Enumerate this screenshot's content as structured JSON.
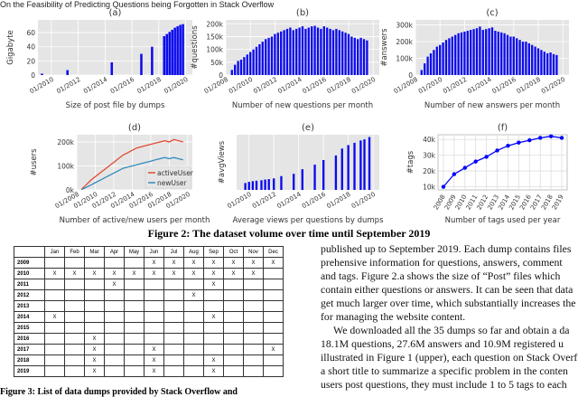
{
  "header": {
    "running_title": "On the Feasibility of Predicting Questions being Forgotten in Stack Overflow"
  },
  "chart_data": [
    {
      "type": "bar",
      "title": "(a)",
      "y_label": "Gigabyte",
      "x_label": "Size of post file by dumps",
      "color": "#0a0aee",
      "background": "#e5e5e5",
      "grid": true,
      "x": [
        2009.3,
        2011.2,
        2014.5,
        2016.7,
        2017.5,
        2018.4,
        2018.6,
        2018.8,
        2019.0,
        2019.2,
        2019.4,
        2019.6,
        2019.8
      ],
      "values": [
        2,
        7,
        18,
        30,
        40,
        55,
        58,
        61,
        64,
        67,
        69,
        71,
        72
      ],
      "xlim": [
        2009,
        2020.5
      ],
      "ylim": [
        0,
        78
      ],
      "xticks": [
        {
          "value": 2010,
          "label": "01/2010"
        },
        {
          "value": 2012,
          "label": "01/2012"
        },
        {
          "value": 2014,
          "label": "01/2014"
        },
        {
          "value": 2016,
          "label": "01/2016"
        },
        {
          "value": 2018,
          "label": "01/2018"
        },
        {
          "value": 2020,
          "label": "01/2020"
        }
      ],
      "yticks": [
        0,
        20,
        40,
        60
      ]
    },
    {
      "type": "bar",
      "title": "(b)",
      "y_label": "#questions",
      "x_label": "Number of new questions per month",
      "color": "#0a0aee",
      "background": "#e5e5e5",
      "grid": true,
      "x": [
        2008.5,
        2008.75,
        2009,
        2009.25,
        2009.5,
        2009.75,
        2010,
        2010.25,
        2010.5,
        2010.75,
        2011,
        2011.25,
        2011.5,
        2011.75,
        2012,
        2012.25,
        2012.5,
        2012.75,
        2013,
        2013.25,
        2013.5,
        2013.75,
        2014,
        2014.25,
        2014.5,
        2014.75,
        2015,
        2015.25,
        2015.5,
        2015.75,
        2016,
        2016.25,
        2016.5,
        2016.75,
        2017,
        2017.25,
        2017.5,
        2017.75,
        2018,
        2018.25,
        2018.5,
        2018.75,
        2019,
        2019.25,
        2019.5
      ],
      "values": [
        20000,
        40000,
        55000,
        60000,
        70000,
        80000,
        90000,
        100000,
        110000,
        120000,
        130000,
        140000,
        145000,
        150000,
        160000,
        165000,
        170000,
        175000,
        180000,
        185000,
        175000,
        180000,
        185000,
        190000,
        180000,
        185000,
        190000,
        192000,
        185000,
        180000,
        190000,
        185000,
        180000,
        175000,
        180000,
        175000,
        170000,
        165000,
        160000,
        150000,
        145000,
        140000,
        145000,
        140000,
        135000
      ],
      "xlim": [
        2008,
        2020.5
      ],
      "ylim": [
        0,
        215000
      ],
      "xticks": [
        {
          "value": 2008,
          "label": "01/2008"
        },
        {
          "value": 2010,
          "label": "01/2010"
        },
        {
          "value": 2012,
          "label": "01/2012"
        },
        {
          "value": 2014,
          "label": "01/2014"
        },
        {
          "value": 2016,
          "label": "01/2016"
        },
        {
          "value": 2018,
          "label": "01/2018"
        },
        {
          "value": 2020,
          "label": "01/2020"
        }
      ],
      "yticks": [
        0,
        {
          "value": 50000,
          "label": "50k"
        },
        {
          "value": 100000,
          "label": "100k"
        },
        {
          "value": 150000,
          "label": "150k"
        },
        {
          "value": 200000,
          "label": "200k"
        }
      ]
    },
    {
      "type": "bar",
      "title": "(c)",
      "y_label": "#answers",
      "x_label": "Number of new answers per month",
      "color": "#0a0aee",
      "background": "#e5e5e5",
      "grid": true,
      "x": [
        2008.5,
        2008.75,
        2009,
        2009.25,
        2009.5,
        2009.75,
        2010,
        2010.25,
        2010.5,
        2010.75,
        2011,
        2011.25,
        2011.5,
        2011.75,
        2012,
        2012.25,
        2012.5,
        2012.75,
        2013,
        2013.25,
        2013.5,
        2013.75,
        2014,
        2014.25,
        2014.5,
        2014.75,
        2015,
        2015.25,
        2015.5,
        2015.75,
        2016,
        2016.25,
        2016.5,
        2016.75,
        2017,
        2017.25,
        2017.5,
        2017.75,
        2018,
        2018.25,
        2018.5,
        2018.75,
        2019,
        2019.25,
        2019.5
      ],
      "values": [
        30000,
        70000,
        110000,
        130000,
        150000,
        170000,
        180000,
        195000,
        210000,
        220000,
        230000,
        240000,
        250000,
        255000,
        260000,
        265000,
        270000,
        275000,
        280000,
        290000,
        270000,
        275000,
        280000,
        285000,
        265000,
        260000,
        255000,
        250000,
        240000,
        230000,
        230000,
        220000,
        210000,
        200000,
        200000,
        190000,
        180000,
        170000,
        160000,
        150000,
        140000,
        130000,
        135000,
        125000,
        120000
      ],
      "xlim": [
        2008,
        2020.5
      ],
      "ylim": [
        0,
        330000
      ],
      "xticks": [
        {
          "value": 2008,
          "label": "01/2008"
        },
        {
          "value": 2010,
          "label": "01/2010"
        },
        {
          "value": 2012,
          "label": "01/2012"
        },
        {
          "value": 2014,
          "label": "01/2014"
        },
        {
          "value": 2016,
          "label": "01/2016"
        },
        {
          "value": 2018,
          "label": "01/2018"
        },
        {
          "value": 2020,
          "label": "01/2020"
        }
      ],
      "yticks": [
        0,
        {
          "value": 100000,
          "label": "100k"
        },
        {
          "value": 200000,
          "label": "200k"
        },
        {
          "value": 300000,
          "label": "300k"
        }
      ]
    },
    {
      "type": "line",
      "title": "(d)",
      "y_label": "#users",
      "x_label": "Number of active/new users per month",
      "background": "#e5e5e5",
      "grid": true,
      "legend": "lower-right",
      "x": [
        2008.5,
        2009,
        2009.5,
        2010,
        2010.5,
        2011,
        2011.5,
        2012,
        2012.5,
        2013,
        2013.5,
        2014,
        2014.5,
        2015,
        2015.5,
        2016,
        2016.5,
        2017,
        2017.5,
        2018,
        2018.5,
        2019,
        2019.5
      ],
      "series": [
        {
          "name": "activeUser",
          "color": "#e24a33",
          "values": [
            2000,
            20000,
            40000,
            55000,
            70000,
            85000,
            100000,
            115000,
            130000,
            145000,
            155000,
            165000,
            175000,
            180000,
            185000,
            190000,
            195000,
            200000,
            205000,
            200000,
            210000,
            205000,
            200000
          ]
        },
        {
          "name": "newUser",
          "color": "#348abd",
          "values": [
            1000,
            10000,
            20000,
            30000,
            40000,
            50000,
            60000,
            70000,
            80000,
            90000,
            95000,
            100000,
            105000,
            110000,
            115000,
            120000,
            125000,
            130000,
            135000,
            130000,
            135000,
            130000,
            125000
          ]
        }
      ],
      "xlim": [
        2008,
        2020.5
      ],
      "ylim": [
        0,
        230000
      ],
      "xticks": [
        {
          "value": 2008,
          "label": "01/2008"
        },
        {
          "value": 2010,
          "label": "01/2010"
        },
        {
          "value": 2012,
          "label": "01/2012"
        },
        {
          "value": 2014,
          "label": "01/2014"
        },
        {
          "value": 2016,
          "label": "01/2016"
        },
        {
          "value": 2018,
          "label": "01/2018"
        },
        {
          "value": 2020,
          "label": "01/2020"
        }
      ],
      "yticks": [
        {
          "value": 0,
          "label": "0k"
        },
        {
          "value": 100000,
          "label": "100k"
        },
        {
          "value": 200000,
          "label": "200k"
        }
      ]
    },
    {
      "type": "bar",
      "title": "(e)",
      "y_label": "#avgViews",
      "x_label": "Average views per questions by dumps",
      "color": "#0a0aee",
      "background": "#e5e5e5",
      "grid": true,
      "x": [
        2009.7,
        2010.0,
        2010.3,
        2010.6,
        2011.0,
        2011.3,
        2011.6,
        2012.0,
        2012.6,
        2013.6,
        2014.3,
        2015.3,
        2016.0,
        2017.0,
        2017.5,
        2018.0,
        2018.5,
        2019.0,
        2019.3,
        2019.7
      ],
      "values": [
        300,
        350,
        380,
        400,
        420,
        450,
        470,
        500,
        600,
        700,
        900,
        1100,
        1300,
        1500,
        1800,
        1950,
        2050,
        2150,
        2200,
        2300
      ],
      "xlim": [
        2009,
        2020.5
      ],
      "ylim": [
        0,
        2400
      ],
      "xticks": [
        {
          "value": 2010,
          "label": "01/2010"
        },
        {
          "value": 2012,
          "label": "01/2012"
        },
        {
          "value": 2014,
          "label": "01/2014"
        },
        {
          "value": 2016,
          "label": "01/2016"
        },
        {
          "value": 2018,
          "label": "01/2018"
        },
        {
          "value": 2020,
          "label": "01/2020"
        }
      ],
      "yticks": []
    },
    {
      "type": "line",
      "title": "(f)",
      "y_label": "#tags",
      "x_label": "Number of tags used per year",
      "color": "#0000ff",
      "background": "#ffffff",
      "grid": true,
      "markers": true,
      "categories": [
        "2008",
        "2009",
        "2010",
        "2011",
        "2012",
        "2013",
        "2014",
        "2015",
        "2016",
        "2017",
        "2018",
        "2019"
      ],
      "values": [
        10000,
        18000,
        22000,
        26000,
        29000,
        33000,
        36000,
        38000,
        39500,
        41000,
        42000,
        41000
      ],
      "ylim": [
        8000,
        43000
      ],
      "yticks": [
        {
          "value": 10000,
          "label": "10k"
        },
        {
          "value": 20000,
          "label": "20k"
        },
        {
          "value": 30000,
          "label": "30k"
        },
        {
          "value": 40000,
          "label": "40k"
        }
      ]
    }
  ],
  "figure_caption": "Figure 2: The dataset volume over time until September 2019",
  "table": {
    "columns": [
      "Jan",
      "Feb",
      "Mar",
      "Apr",
      "May",
      "Jun",
      "Jul",
      "Aug",
      "Sep",
      "Oct",
      "Nov",
      "Dec"
    ],
    "rows": [
      [
        "2009",
        null,
        null,
        null,
        null,
        null,
        "X",
        "X",
        "X",
        "X",
        "X",
        "X",
        "X"
      ],
      [
        "2010",
        "X",
        "X",
        "X",
        "X",
        "X",
        "X",
        "X",
        "X",
        "X",
        "X",
        "X",
        null
      ],
      [
        "2011",
        null,
        null,
        null,
        "X",
        null,
        null,
        null,
        null,
        "X",
        null,
        null,
        null
      ],
      [
        "2012",
        null,
        null,
        null,
        null,
        null,
        null,
        null,
        "X",
        null,
        null,
        null,
        null
      ],
      [
        "2013",
        null,
        null,
        null,
        null,
        null,
        null,
        null,
        null,
        null,
        null,
        null,
        null
      ],
      [
        "2014",
        "X",
        null,
        null,
        null,
        null,
        null,
        null,
        null,
        "X",
        null,
        null,
        null
      ],
      [
        "2015",
        null,
        null,
        null,
        null,
        null,
        null,
        null,
        null,
        null,
        null,
        null,
        null
      ],
      [
        "2016",
        null,
        null,
        "X",
        null,
        null,
        null,
        null,
        null,
        null,
        null,
        null,
        null
      ],
      [
        "2017",
        null,
        null,
        "X",
        null,
        null,
        "X",
        null,
        null,
        null,
        null,
        null,
        "X"
      ],
      [
        "2018",
        null,
        null,
        "X",
        null,
        null,
        "X",
        null,
        null,
        "X",
        null,
        null,
        null
      ],
      [
        "2019",
        null,
        null,
        "X",
        null,
        null,
        "X",
        null,
        null,
        "X",
        null,
        null,
        null
      ]
    ],
    "caption": "Figure 3: List of data dumps provided by Stack Overflow and"
  },
  "body": {
    "lines": [
      "published up to September 2019. Each dump contains files",
      "prehensive information for questions, answers, comment",
      "and tags. Figure 2.a shows the size of “Post” files which",
      "contain either questions or answers. It can be seen that data",
      "get much larger over time, which substantially increases the",
      "for managing the website content.",
      "We downloaded all the 35 dumps so far and obtain a da",
      "18.1M questions, 27.6M answers and 10.9M registered u",
      "illustrated in Figure 1 (upper), each question on Stack Overf",
      "a short title to summarize a specific problem in the conten",
      "users post questions, they must include 1 to 5 tags to each"
    ]
  }
}
